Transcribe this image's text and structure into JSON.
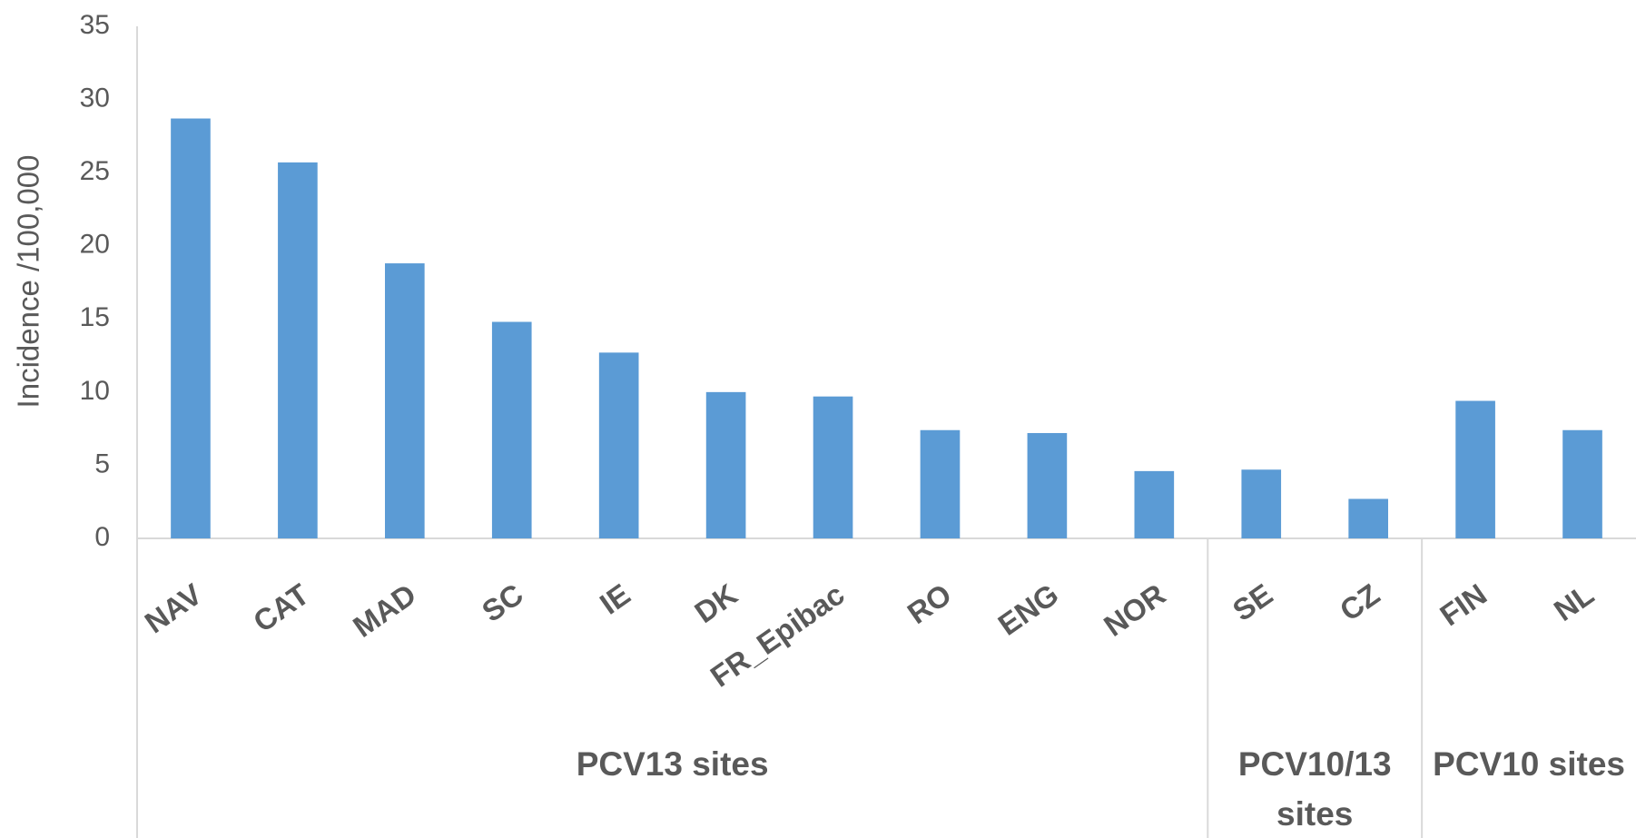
{
  "chart_data": {
    "type": "bar",
    "y_label": "Incidence /100,000",
    "categories": [
      "NAV",
      "CAT",
      "MAD",
      "SC",
      "IE",
      "DK",
      "FR_Epibac",
      "RO",
      "ENG",
      "NOR",
      "SE",
      "CZ",
      "FIN",
      "NL"
    ],
    "values": [
      28.7,
      25.7,
      18.8,
      14.8,
      12.7,
      10,
      9.7,
      7.4,
      7.2,
      4.6,
      4.7,
      2.7,
      9.4,
      7.4
    ],
    "groups": [
      {
        "label": "PCV13 sites",
        "count": 10
      },
      {
        "label": "PCV10/13 sites",
        "count": 2
      },
      {
        "label": "PCV10 sites",
        "count": 2
      }
    ],
    "color": "#5b9bd5",
    "ylim": [
      0,
      35
    ],
    "yticks": [
      0,
      5,
      10,
      15,
      20,
      25,
      30,
      35
    ],
    "grid": false
  }
}
